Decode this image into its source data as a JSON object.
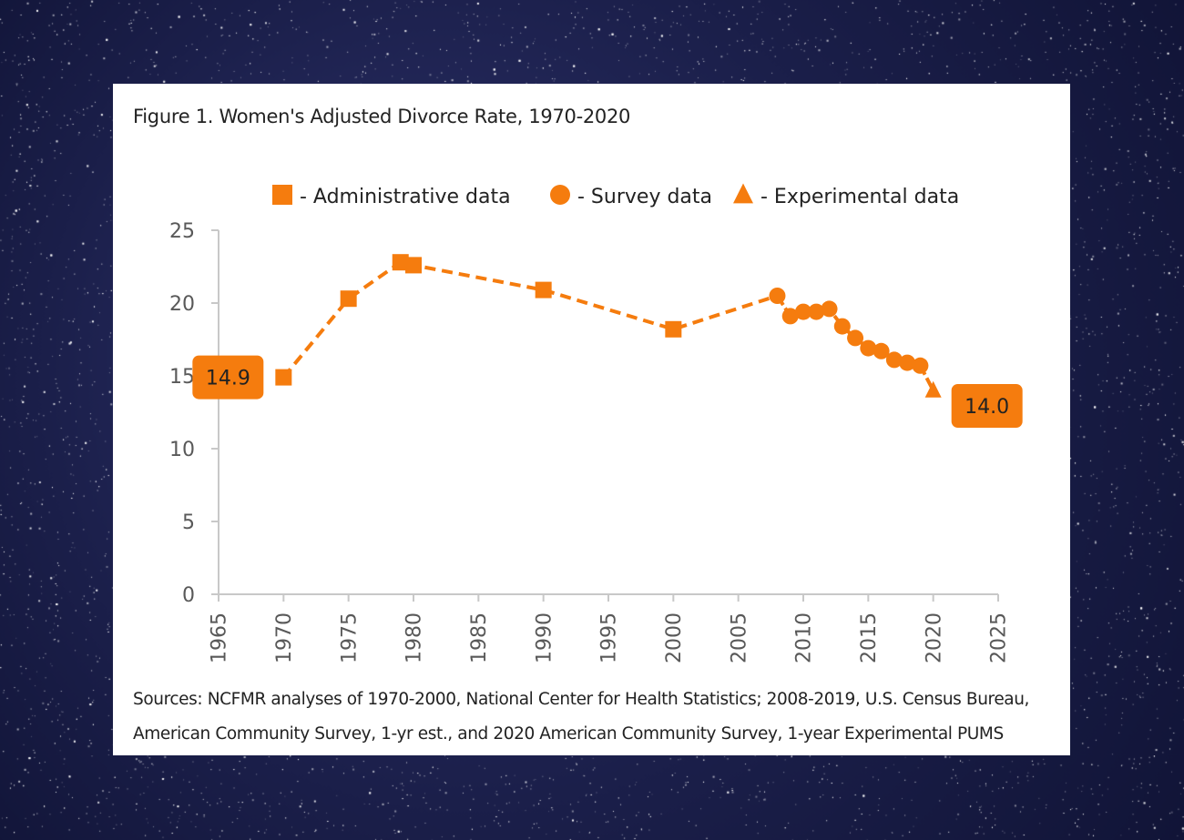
{
  "background": {
    "colors": [
      "#0f1233",
      "#1b1f4a",
      "#2a2f66"
    ]
  },
  "figure": {
    "title": "Figure 1. Women's Adjusted Divorce Rate, 1970-2020",
    "sources_line1": "Sources: NCFMR analyses of 1970-2000, National Center for Health Statistics; 2008-2019, U.S. Census Bureau,",
    "sources_line2": "American Community Survey, 1-yr est., and 2020 American Community Survey, 1-year Experimental PUMS"
  },
  "chart_data": {
    "type": "line",
    "title": "",
    "xlabel": "",
    "ylabel": "",
    "xlim": [
      1965,
      2025
    ],
    "ylim": [
      0,
      25
    ],
    "x_ticks": [
      1965,
      1970,
      1975,
      1980,
      1985,
      1990,
      1995,
      2000,
      2005,
      2010,
      2015,
      2020,
      2025
    ],
    "y_ticks": [
      0,
      5,
      10,
      15,
      20,
      25
    ],
    "grid": false,
    "legend_position": "top",
    "accent_color": "#f57c0e",
    "line_style": "dashed-then-solid",
    "series": [
      {
        "name": "Administrative data",
        "marker": "square",
        "points": [
          {
            "x": 1970,
            "y": 14.9
          },
          {
            "x": 1975,
            "y": 20.3
          },
          {
            "x": 1979,
            "y": 22.8
          },
          {
            "x": 1980,
            "y": 22.6
          },
          {
            "x": 1990,
            "y": 20.9
          },
          {
            "x": 2000,
            "y": 18.2
          }
        ]
      },
      {
        "name": "Survey data",
        "marker": "circle",
        "points": [
          {
            "x": 2008,
            "y": 20.5
          },
          {
            "x": 2009,
            "y": 19.1
          },
          {
            "x": 2010,
            "y": 19.4
          },
          {
            "x": 2011,
            "y": 19.4
          },
          {
            "x": 2012,
            "y": 19.6
          },
          {
            "x": 2013,
            "y": 18.4
          },
          {
            "x": 2014,
            "y": 17.6
          },
          {
            "x": 2015,
            "y": 16.9
          },
          {
            "x": 2016,
            "y": 16.7
          },
          {
            "x": 2017,
            "y": 16.1
          },
          {
            "x": 2018,
            "y": 15.9
          },
          {
            "x": 2019,
            "y": 15.7
          }
        ]
      },
      {
        "name": "Experimental data",
        "marker": "triangle",
        "points": [
          {
            "x": 2020,
            "y": 14.0
          }
        ]
      }
    ],
    "legend": [
      {
        "marker": "square",
        "label": "- Administrative data"
      },
      {
        "marker": "circle",
        "label": "- Survey data"
      },
      {
        "marker": "triangle",
        "label": "- Experimental data"
      }
    ],
    "annotations": [
      {
        "text": "14.9",
        "x": 1970,
        "y": 14.9,
        "side": "left"
      },
      {
        "text": "14.0",
        "x": 2020,
        "y": 14.0,
        "side": "right"
      }
    ]
  }
}
